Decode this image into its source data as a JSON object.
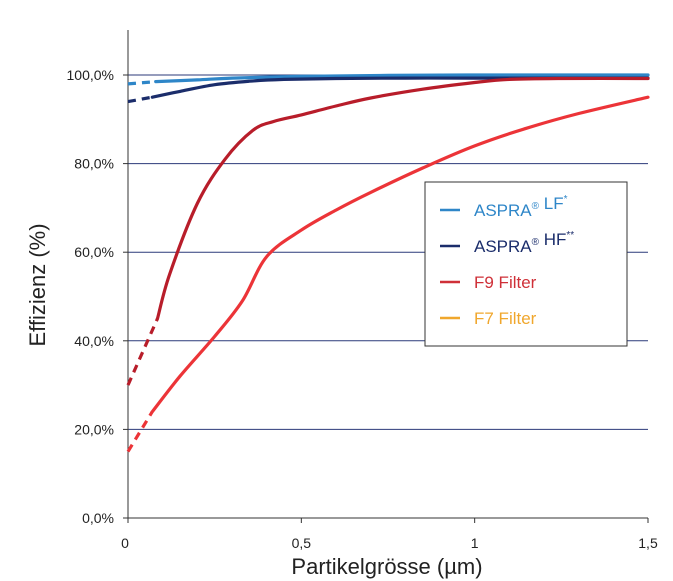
{
  "chart_data": {
    "type": "line",
    "xlabel": "Partikelgrösse (µm)",
    "ylabel": "Effizienz (%)",
    "xlim": [
      0,
      1.5
    ],
    "ylim": [
      0,
      110
    ],
    "x_ticks": [
      {
        "value": 0,
        "label": "0"
      },
      {
        "value": 0.5,
        "label": "0,5"
      },
      {
        "value": 1,
        "label": "1"
      },
      {
        "value": 1.5,
        "label": "1,5"
      }
    ],
    "y_ticks": [
      {
        "value": 0,
        "label": "0,0%"
      },
      {
        "value": 20,
        "label": "20,0%"
      },
      {
        "value": 40,
        "label": "40,0%"
      },
      {
        "value": 60,
        "label": "60,0%"
      },
      {
        "value": 80,
        "label": "80,0%"
      },
      {
        "value": 100,
        "label": "100,0%"
      }
    ],
    "grid": "horizontal",
    "legend_position": "right-middle",
    "series": [
      {
        "key": "aspra-lf",
        "legend_main": "ASPRA",
        "legend_sup1": "®",
        "legend_rest": " LF",
        "legend_sup2": "*",
        "color": "#2e86c8",
        "dashed_x": [
          0,
          0.08
        ],
        "dashed_y": [
          98,
          98.5
        ],
        "x": [
          0.08,
          0.2,
          0.3,
          0.5,
          0.75,
          1.0,
          1.25,
          1.5
        ],
        "y": [
          98.5,
          98.9,
          99.3,
          99.7,
          99.9,
          100,
          100,
          100
        ]
      },
      {
        "key": "aspra-hf",
        "legend_main": "ASPRA",
        "legend_sup1": "®",
        "legend_rest": "  HF",
        "legend_sup2": "**",
        "color": "#1b2d6b",
        "dashed_x": [
          0,
          0.07
        ],
        "dashed_y": [
          94,
          95
        ],
        "x": [
          0.07,
          0.15,
          0.25,
          0.35,
          0.45,
          0.6,
          0.8,
          1.0,
          1.25,
          1.5
        ],
        "y": [
          95,
          96.3,
          97.8,
          98.6,
          99.0,
          99.2,
          99.3,
          99.3,
          99.3,
          99.3
        ]
      },
      {
        "key": "f9-filter",
        "legend_main": "F9 Filter",
        "legend_sup1": "",
        "legend_rest": "",
        "legend_sup2": "",
        "color": "#b81d2a",
        "legend_color": "#cf3038",
        "dashed_x": [
          0,
          0.085
        ],
        "dashed_y": [
          30,
          45
        ],
        "x": [
          0.085,
          0.12,
          0.2,
          0.28,
          0.36,
          0.42,
          0.5,
          0.6,
          0.7,
          0.85,
          1.0,
          1.1,
          1.25,
          1.5
        ],
        "y": [
          45,
          55,
          71,
          81,
          87.5,
          89.5,
          91,
          93,
          94.8,
          96.8,
          98.3,
          99.0,
          99.2,
          99.2
        ]
      },
      {
        "key": "f7-filter",
        "legend_main": "F7 Filter",
        "legend_sup1": "",
        "legend_rest": "",
        "legend_sup2": "",
        "color": "#ec3438",
        "legend_color": "#f0a72d",
        "dashed_x": [
          0,
          0.07
        ],
        "dashed_y": [
          15,
          24
        ],
        "x": [
          0.07,
          0.15,
          0.25,
          0.33,
          0.4,
          0.5,
          0.6,
          0.7,
          0.85,
          1.0,
          1.15,
          1.3,
          1.5
        ],
        "y": [
          24,
          32,
          41,
          49,
          59,
          65,
          69.5,
          73.5,
          79,
          84,
          88,
          91.3,
          95
        ]
      }
    ]
  }
}
